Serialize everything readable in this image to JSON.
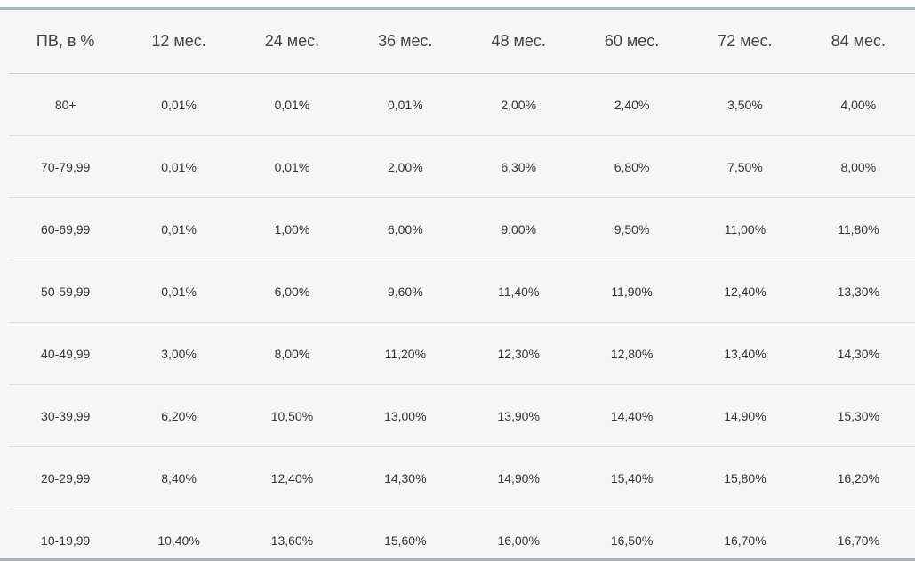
{
  "chart_data": {
    "type": "table",
    "title": "",
    "columns": [
      "ПВ, в %",
      "12 мес.",
      "24 мес.",
      "36 мес.",
      "48 мес.",
      "60 мес.",
      "72 мес.",
      "84 мес."
    ],
    "rows": [
      {
        "label": "80+",
        "values": [
          "0,01%",
          "0,01%",
          "0,01%",
          "2,00%",
          "2,40%",
          "3,50%",
          "4,00%"
        ]
      },
      {
        "label": "70-79,99",
        "values": [
          "0,01%",
          "0,01%",
          "2,00%",
          "6,30%",
          "6,80%",
          "7,50%",
          "8,00%"
        ]
      },
      {
        "label": "60-69,99",
        "values": [
          "0,01%",
          "1,00%",
          "6,00%",
          "9,00%",
          "9,50%",
          "11,00%",
          "11,80%"
        ]
      },
      {
        "label": "50-59,99",
        "values": [
          "0,01%",
          "6,00%",
          "9,60%",
          "11,40%",
          "11,90%",
          "12,40%",
          "13,30%"
        ]
      },
      {
        "label": "40-49,99",
        "values": [
          "3,00%",
          "8,00%",
          "11,20%",
          "12,30%",
          "12,80%",
          "13,40%",
          "14,30%"
        ]
      },
      {
        "label": "30-39,99",
        "values": [
          "6,20%",
          "10,50%",
          "13,00%",
          "13,90%",
          "14,40%",
          "14,90%",
          "15,30%"
        ]
      },
      {
        "label": "20-29,99",
        "values": [
          "8,40%",
          "12,40%",
          "14,30%",
          "14,90%",
          "15,40%",
          "15,80%",
          "16,20%"
        ]
      },
      {
        "label": "10-19,99",
        "values": [
          "10,40%",
          "13,60%",
          "15,60%",
          "16,00%",
          "16,50%",
          "16,70%",
          "16,70%"
        ]
      }
    ]
  },
  "colors": {
    "top_border": "#a9b6be",
    "table_background": "#f5f6f5",
    "header_separator": "#cccccc",
    "row_separator": "#dddddd",
    "bottom_divider": "#aab3b9",
    "header_text": "#424242",
    "cell_text": "#333333"
  }
}
